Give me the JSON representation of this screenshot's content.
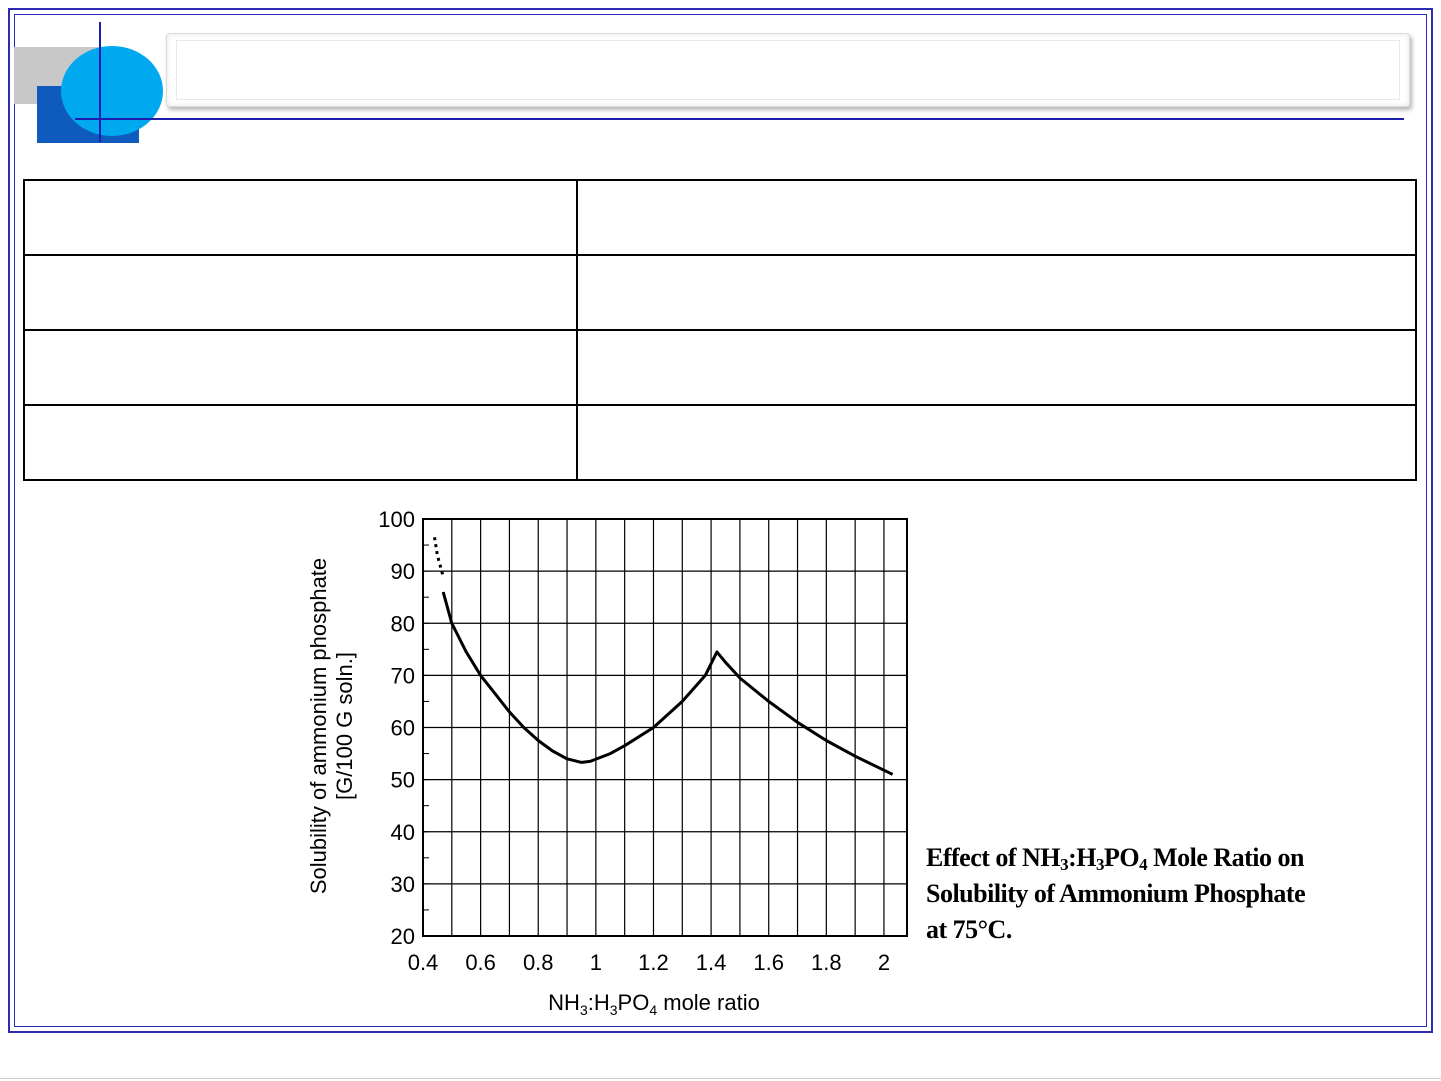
{
  "colors": {
    "frame": "#2b2bb4",
    "accent_blue": "#0f5bbd",
    "circle": "#00a8f0",
    "grey": "#c8c8c8"
  },
  "slide": {
    "title": ""
  },
  "table": {
    "rows": [
      [
        "",
        ""
      ],
      [
        "",
        ""
      ],
      [
        "",
        ""
      ],
      [
        "",
        ""
      ]
    ]
  },
  "caption": {
    "line1_a": "Effect of NH",
    "line1_sub1": "3",
    "line1_b": ":H",
    "line1_sub2": "3",
    "line1_c": "PO",
    "line1_sub3": "4",
    "line1_d": " Mole Ratio on",
    "line2": "Solubility of Ammonium Phosphate",
    "line3": "at 75°C."
  },
  "chart_data": {
    "type": "line",
    "ylabel_line1": "Solubility of ammonium phosphate",
    "ylabel_line2": "[G/100 G soln.]",
    "xlabel_a": "NH",
    "xlabel_sub1": "3",
    "xlabel_b": ":H",
    "xlabel_sub2": "3",
    "xlabel_c": "PO",
    "xlabel_sub3": "4",
    "xlabel_d": " mole ratio",
    "xlim": [
      0.4,
      2.08
    ],
    "ylim": [
      20,
      100
    ],
    "x_ticks": [
      0.4,
      0.6,
      0.8,
      1,
      1.2,
      1.4,
      1.6,
      1.8,
      2
    ],
    "x_tick_labels": [
      "0.4",
      "0.6",
      "0.8",
      "1",
      "1.2",
      "1.4",
      "1.6",
      "1.8",
      "2"
    ],
    "y_ticks": [
      20,
      30,
      40,
      50,
      60,
      70,
      80,
      90,
      100
    ],
    "y_tick_labels": [
      "20",
      "30",
      "40",
      "50",
      "60",
      "70",
      "80",
      "90",
      "100"
    ],
    "grid": true,
    "series": [
      {
        "dashed_segment": [
          [
            0.44,
            96.5
          ],
          [
            0.45,
            93
          ],
          [
            0.47,
            89
          ]
        ],
        "values": [
          [
            0.47,
            86
          ],
          [
            0.5,
            80
          ],
          [
            0.55,
            74.5
          ],
          [
            0.6,
            70
          ],
          [
            0.65,
            66.5
          ],
          [
            0.7,
            63
          ],
          [
            0.75,
            60
          ],
          [
            0.8,
            57.5
          ],
          [
            0.85,
            55.5
          ],
          [
            0.9,
            54
          ],
          [
            0.95,
            53.3
          ],
          [
            0.98,
            53.5
          ],
          [
            1.05,
            55
          ],
          [
            1.1,
            56.5
          ],
          [
            1.2,
            60
          ],
          [
            1.3,
            65
          ],
          [
            1.38,
            70
          ],
          [
            1.42,
            74.5
          ],
          [
            1.45,
            72.5
          ],
          [
            1.5,
            69.5
          ],
          [
            1.6,
            65
          ],
          [
            1.7,
            61
          ],
          [
            1.8,
            57.5
          ],
          [
            1.9,
            54.5
          ],
          [
            2.03,
            51
          ]
        ]
      }
    ]
  }
}
